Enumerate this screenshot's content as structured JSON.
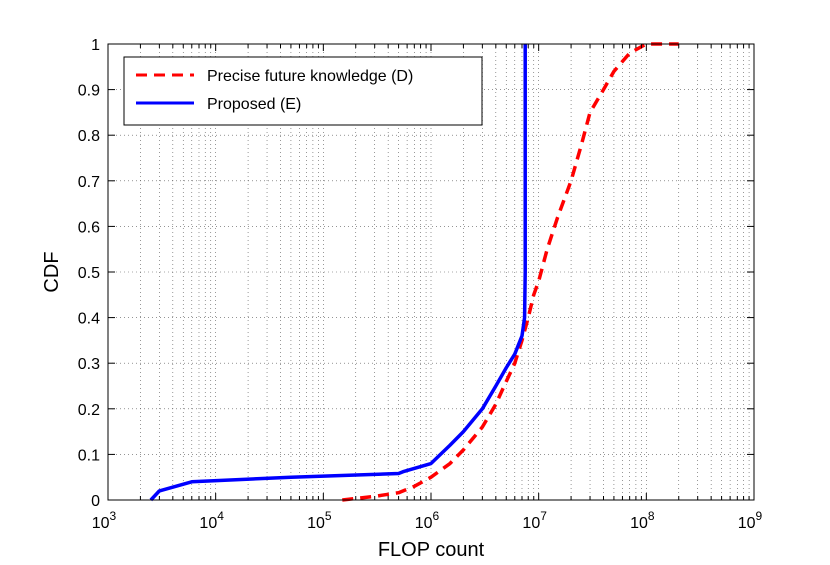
{
  "chart_data": {
    "type": "line",
    "xlabel": "FLOP count",
    "ylabel": "CDF",
    "xscale": "log",
    "xlim": [
      1000,
      1000000000
    ],
    "ylim": [
      0,
      1
    ],
    "grid": "dotted, major and minor",
    "legend_position": "top-left",
    "x_ticks": [
      {
        "value": 1000,
        "base": "10",
        "exp": "3"
      },
      {
        "value": 10000,
        "base": "10",
        "exp": "4"
      },
      {
        "value": 100000,
        "base": "10",
        "exp": "5"
      },
      {
        "value": 1000000,
        "base": "10",
        "exp": "6"
      },
      {
        "value": 10000000,
        "base": "10",
        "exp": "7"
      },
      {
        "value": 100000000,
        "base": "10",
        "exp": "8"
      },
      {
        "value": 1000000000,
        "base": "10",
        "exp": "9"
      }
    ],
    "y_ticks": [
      {
        "value": 0,
        "label": "0"
      },
      {
        "value": 0.1,
        "label": "0.1"
      },
      {
        "value": 0.2,
        "label": "0.2"
      },
      {
        "value": 0.3,
        "label": "0.3"
      },
      {
        "value": 0.4,
        "label": "0.4"
      },
      {
        "value": 0.5,
        "label": "0.5"
      },
      {
        "value": 0.6,
        "label": "0.6"
      },
      {
        "value": 0.7,
        "label": "0.7"
      },
      {
        "value": 0.8,
        "label": "0.8"
      },
      {
        "value": 0.9,
        "label": "0.9"
      },
      {
        "value": 1,
        "label": "1"
      }
    ],
    "series": [
      {
        "name": "Precise future knowledge (D)",
        "color": "#ff0000",
        "style": "dashed",
        "points": [
          [
            150000,
            0
          ],
          [
            300000,
            0.008
          ],
          [
            500000,
            0.016
          ],
          [
            700000,
            0.03
          ],
          [
            1000000,
            0.05
          ],
          [
            1500000,
            0.08
          ],
          [
            2000000,
            0.11
          ],
          [
            3000000,
            0.16
          ],
          [
            4000000,
            0.21
          ],
          [
            5000000,
            0.26
          ],
          [
            6000000,
            0.3
          ],
          [
            7000000,
            0.35
          ],
          [
            8000000,
            0.4
          ],
          [
            9000000,
            0.45
          ],
          [
            10000000,
            0.48
          ],
          [
            12000000,
            0.55
          ],
          [
            15000000,
            0.62
          ],
          [
            20000000,
            0.7
          ],
          [
            25000000,
            0.78
          ],
          [
            30000000,
            0.85
          ],
          [
            40000000,
            0.9
          ],
          [
            50000000,
            0.94
          ],
          [
            70000000,
            0.98
          ],
          [
            100000000,
            1.0
          ],
          [
            200000000,
            1.0
          ]
        ]
      },
      {
        "name": "Proposed (E)",
        "color": "#0000ff",
        "style": "solid",
        "points": [
          [
            2500,
            0
          ],
          [
            3000,
            0.02
          ],
          [
            6000,
            0.04
          ],
          [
            50000,
            0.05
          ],
          [
            500000,
            0.058
          ],
          [
            550000,
            0.062
          ],
          [
            1000000,
            0.08
          ],
          [
            1500000,
            0.12
          ],
          [
            2000000,
            0.15
          ],
          [
            3000000,
            0.2
          ],
          [
            4000000,
            0.25
          ],
          [
            5000000,
            0.29
          ],
          [
            6000000,
            0.32
          ],
          [
            7000000,
            0.36
          ],
          [
            7400000,
            0.4
          ],
          [
            7500000,
            0.5
          ],
          [
            7500000,
            1.0
          ]
        ]
      }
    ]
  }
}
